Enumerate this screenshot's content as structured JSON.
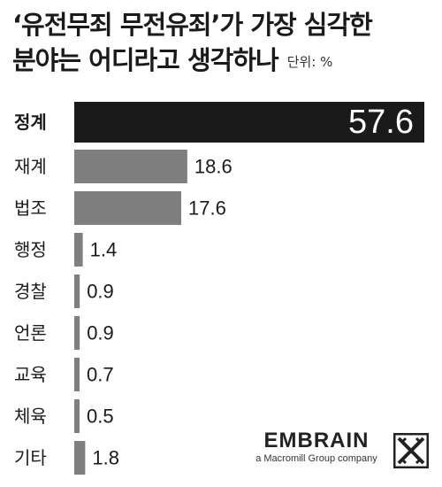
{
  "title": {
    "line1": "‘유전무죄 무전유죄’가 가장 심각한",
    "line2": "분야는 어디라고 생각하나"
  },
  "unit_label": "단위: %",
  "colors": {
    "highlight_bar": "#1a1a1a",
    "bar": "#7f7f7f",
    "highlight_value_text": "#ffffff",
    "value_text": "#1a1a1a"
  },
  "chart_data": {
    "type": "bar",
    "orientation": "horizontal",
    "categories": [
      "정계",
      "재계",
      "법조",
      "행정",
      "경찰",
      "언론",
      "교육",
      "체육",
      "기타"
    ],
    "values": [
      57.6,
      18.6,
      17.6,
      1.4,
      0.9,
      0.9,
      0.7,
      0.5,
      1.8
    ],
    "value_labels": [
      "57.6",
      "18.6",
      "17.6",
      "1.4",
      "0.9",
      "0.9",
      "0.7",
      "0.5",
      "1.8"
    ],
    "highlight_index": 0,
    "xlim": [
      0,
      57.6
    ],
    "grid": false,
    "legend": "none"
  },
  "logo": {
    "wordmark": "EMBRAIN",
    "tagline": "a Macromill Group company"
  }
}
